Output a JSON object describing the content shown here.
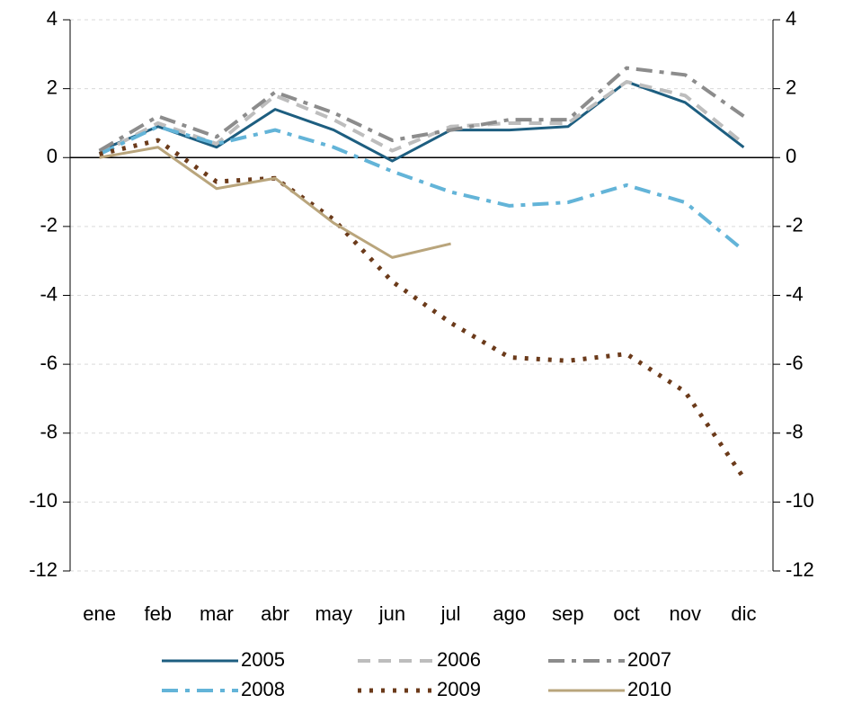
{
  "chart_data": {
    "type": "line",
    "categories": [
      "ene",
      "feb",
      "mar",
      "abr",
      "may",
      "jun",
      "jul",
      "ago",
      "sep",
      "oct",
      "nov",
      "dic"
    ],
    "series": [
      {
        "name": "2005",
        "color": "#1d5e80",
        "style": "solid",
        "values": [
          0.2,
          0.9,
          0.3,
          1.4,
          0.8,
          -0.1,
          0.8,
          0.8,
          0.9,
          2.2,
          1.6,
          0.3
        ]
      },
      {
        "name": "2006",
        "color": "#bdbdbd",
        "style": "dashed",
        "values": [
          0.1,
          1.0,
          0.4,
          1.8,
          1.1,
          0.2,
          0.9,
          1.0,
          1.0,
          2.2,
          1.8,
          0.4
        ]
      },
      {
        "name": "2007",
        "color": "#8c8c8c",
        "style": "dashdot",
        "values": [
          0.2,
          1.2,
          0.6,
          1.9,
          1.3,
          0.5,
          0.8,
          1.1,
          1.1,
          2.6,
          2.4,
          1.2
        ]
      },
      {
        "name": "2008",
        "color": "#63b4d8",
        "style": "dashdot",
        "values": [
          0.1,
          0.9,
          0.4,
          0.8,
          0.3,
          -0.4,
          -1.0,
          -1.4,
          -1.3,
          -0.8,
          -1.3,
          -2.7
        ]
      },
      {
        "name": "2009",
        "color": "#6b3a1a",
        "style": "dotted",
        "values": [
          0.1,
          0.5,
          -0.7,
          -0.6,
          -1.8,
          -3.6,
          -4.8,
          -5.8,
          -5.9,
          -5.7,
          -6.8,
          -9.3
        ]
      },
      {
        "name": "2010",
        "color": "#b9a57c",
        "style": "solid",
        "values": [
          0.0,
          0.3,
          -0.9,
          -0.6,
          -1.9,
          -2.9,
          -2.5,
          null,
          null,
          null,
          null,
          null
        ]
      }
    ],
    "ylim": [
      -12,
      4
    ],
    "yticks": [
      -12,
      -10,
      -8,
      -6,
      -4,
      -2,
      0,
      2,
      4
    ],
    "y2lim": [
      -12,
      4
    ],
    "y2ticks": [
      -12,
      -10,
      -8,
      -6,
      -4,
      -2,
      0,
      2,
      4
    ],
    "grid": true,
    "legend": "bottom"
  }
}
